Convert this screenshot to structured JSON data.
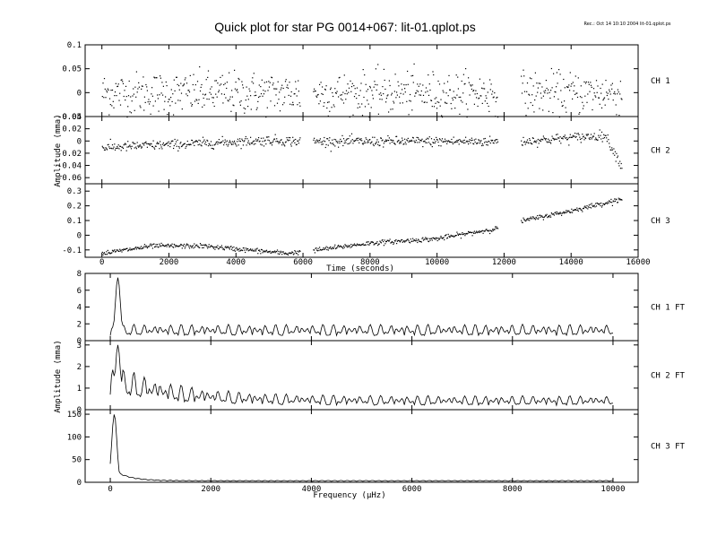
{
  "title": "Quick plot for star PG 0014+067:  lit-01.qplot.ps",
  "stamp": "Rec.: Oct 14 10:10 2004  lit-01.qplot.ps",
  "time_xlabel": "Time (seconds)",
  "freq_xlabel": "Frequency (µHz)",
  "time_ylabel": "Amplitude (mma)",
  "freq_ylabel": "Amplitude (mma)",
  "time_ticks": [
    "0",
    "2000",
    "4000",
    "6000",
    "8000",
    "10000",
    "12000",
    "14000",
    "16000"
  ],
  "freq_ticks": [
    "0",
    "2000",
    "4000",
    "6000",
    "8000",
    "10000"
  ],
  "chart_data": [
    {
      "type": "scatter",
      "label": "CH 1",
      "xlim": [
        -500,
        16000
      ],
      "ylim": [
        -0.05,
        0.1
      ],
      "yticks": [
        "-0.05",
        "0",
        "0.05",
        "0.1"
      ],
      "yticks_values": [
        -0.05,
        0,
        0.05,
        0.1
      ],
      "segments": [
        [
          0,
          5900
        ],
        [
          6300,
          11800
        ],
        [
          12500,
          15500
        ]
      ],
      "baseline": 0.0,
      "scatter": 0.022
    },
    {
      "type": "scatter",
      "label": "CH 2",
      "xlim": [
        -500,
        16000
      ],
      "ylim": [
        -0.07,
        0.04
      ],
      "yticks": [
        "-0.06",
        "-0.04",
        "-0.02",
        "0",
        "0.02",
        "0.04"
      ],
      "yticks_values": [
        -0.06,
        -0.04,
        -0.02,
        0,
        0.02,
        0.04
      ],
      "segments": [
        [
          0,
          5900
        ],
        [
          6300,
          11800
        ],
        [
          12500,
          15500
        ]
      ],
      "trend": [
        [
          0,
          -0.01
        ],
        [
          3000,
          -0.003
        ],
        [
          5000,
          0.002
        ],
        [
          6000,
          0.0
        ],
        [
          11800,
          0.0
        ],
        [
          12500,
          0.0
        ],
        [
          15000,
          0.01
        ],
        [
          15500,
          -0.04
        ]
      ],
      "scatter": 0.004
    },
    {
      "type": "scatter",
      "label": "CH 3",
      "xlim": [
        -500,
        16000
      ],
      "ylim": [
        -0.15,
        0.35
      ],
      "yticks": [
        "-0.1",
        "0",
        "0.1",
        "0.2",
        "0.3"
      ],
      "yticks_values": [
        -0.1,
        0,
        0.1,
        0.2,
        0.3
      ],
      "segments": [
        [
          0,
          5900
        ],
        [
          6300,
          11800
        ],
        [
          12500,
          15500
        ]
      ],
      "trend": [
        [
          0,
          -0.12
        ],
        [
          1500,
          -0.07
        ],
        [
          3000,
          -0.07
        ],
        [
          4000,
          -0.09
        ],
        [
          5500,
          -0.12
        ],
        [
          6300,
          -0.1
        ],
        [
          8000,
          -0.05
        ],
        [
          10000,
          -0.02
        ],
        [
          11800,
          0.05
        ],
        [
          12500,
          0.1
        ],
        [
          14000,
          0.17
        ],
        [
          15500,
          0.25
        ]
      ],
      "scatter": 0.008
    },
    {
      "type": "line",
      "label": "CH 1 FT",
      "xlim": [
        -500,
        10500
      ],
      "ylim": [
        0,
        8
      ],
      "yticks": [
        "0",
        "2",
        "4",
        "6",
        "8"
      ],
      "yticks_values": [
        0,
        2,
        4,
        6,
        8
      ],
      "peak": [
        150,
        7.5
      ],
      "noise": 1.5
    },
    {
      "type": "line",
      "label": "CH 2 FT",
      "xlim": [
        -500,
        10500
      ],
      "ylim": [
        0,
        3.2
      ],
      "yticks": [
        "0",
        "1",
        "2",
        "3"
      ],
      "yticks_values": [
        0,
        1,
        2,
        3
      ],
      "peak": [
        150,
        3.0
      ],
      "noise": 0.5
    },
    {
      "type": "line",
      "label": "CH 3 FT",
      "xlim": [
        -500,
        10500
      ],
      "ylim": [
        0,
        160
      ],
      "yticks": [
        "0",
        "50",
        "100",
        "150"
      ],
      "yticks_values": [
        0,
        50,
        100,
        150
      ],
      "peak": [
        80,
        150
      ],
      "noise": 4
    }
  ]
}
